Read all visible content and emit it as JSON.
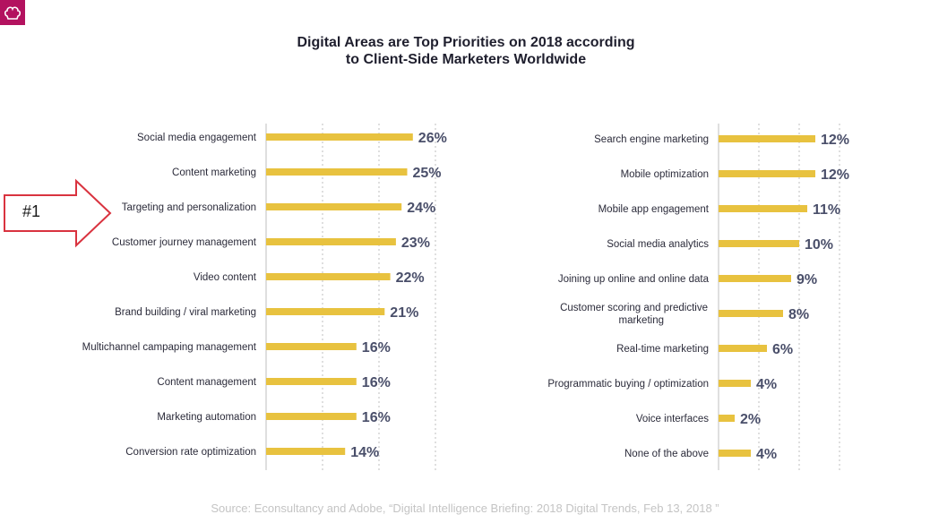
{
  "title": {
    "line1": "Digital Areas are Top Priorities on 2018 according",
    "line2": "to Client-Side Marketers Worldwide"
  },
  "callout": {
    "label": "#1"
  },
  "source": "Source: Econsultancy and Adobe, “Digital Intelligence Briefing: 2018 Digital Trends, Feb 13, 2018 ”",
  "colors": {
    "bar": "#e8c23f",
    "grid": "#bfbfbf",
    "arrow": "#d9333f",
    "logo": "#b3125f"
  },
  "chart_data": [
    {
      "type": "bar",
      "orientation": "horizontal",
      "categories": [
        "Social media engagement",
        "Content marketing",
        "Targeting and personalization",
        "Customer journey management",
        "Video content",
        "Brand building / viral marketing",
        "Multichannel campaping management",
        "Content management",
        "Marketing automation",
        "Conversion rate optimization"
      ],
      "values": [
        26,
        25,
        24,
        23,
        22,
        21,
        16,
        16,
        16,
        14
      ],
      "value_labels": [
        "26%",
        "25%",
        "24%",
        "23%",
        "22%",
        "21%",
        "16%",
        "16%",
        "16%",
        "14%"
      ],
      "xlim": [
        0,
        30
      ]
    },
    {
      "type": "bar",
      "orientation": "horizontal",
      "categories": [
        "Search engine marketing",
        "Mobile optimization",
        "Mobile app engagement",
        "Social media analytics",
        "Joining up online and online data",
        "Customer scoring and predictive marketing",
        "Real-time marketing",
        "Programmatic buying / optimization",
        "Voice interfaces",
        "None of the above"
      ],
      "values": [
        12,
        12,
        11,
        10,
        9,
        8,
        6,
        4,
        2,
        4
      ],
      "value_labels": [
        "12%",
        "12%",
        "11%",
        "10%",
        "9%",
        "8%",
        "6%",
        "4%",
        "2%",
        "4%"
      ],
      "xlim": [
        0,
        15
      ]
    }
  ]
}
